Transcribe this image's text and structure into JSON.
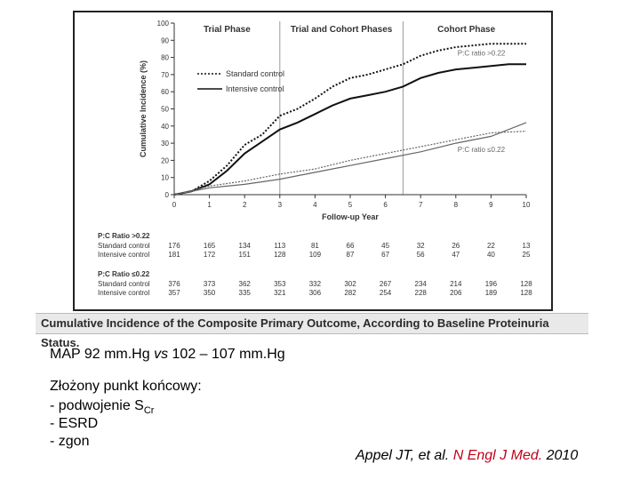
{
  "chart_data": {
    "type": "line",
    "phases": [
      "Trial Phase",
      "Trial and Cohort Phases",
      "Cohort Phase"
    ],
    "xlabel": "Follow-up Year",
    "ylabel": "Cumulative Incidence (%)",
    "x_ticks": [
      0,
      1,
      2,
      3,
      4,
      5,
      6,
      7,
      8,
      9,
      10
    ],
    "y_ticks": [
      0,
      10,
      20,
      30,
      40,
      50,
      60,
      70,
      80,
      90,
      100
    ],
    "xlim": [
      0,
      10
    ],
    "ylim": [
      0,
      100
    ],
    "legend": [
      "Standard control",
      "Intensive control"
    ],
    "curve_labels": {
      "high": "P:C ratio >0.22",
      "low": "P:C ratio ≤0.22"
    },
    "series": [
      {
        "name": "Standard control",
        "group": "P:C ratio >0.22",
        "style": "dotted",
        "x": [
          0,
          0.5,
          1,
          1.5,
          2,
          2.5,
          3,
          3.5,
          4,
          4.5,
          5,
          5.5,
          6,
          6.5,
          7,
          7.5,
          8,
          8.5,
          9,
          9.5,
          10
        ],
        "y": [
          0,
          2,
          8,
          17,
          29,
          35,
          46,
          50,
          56,
          63,
          68,
          70,
          73,
          76,
          81,
          84,
          86,
          87,
          88,
          88,
          88
        ]
      },
      {
        "name": "Intensive control",
        "group": "P:C ratio >0.22",
        "style": "solid",
        "x": [
          0,
          0.5,
          1,
          1.5,
          2,
          2.5,
          3,
          3.5,
          4,
          4.5,
          5,
          5.5,
          6,
          6.5,
          7,
          7.5,
          8,
          8.5,
          9,
          9.5,
          10
        ],
        "y": [
          0,
          2,
          6,
          14,
          24,
          31,
          38,
          42,
          47,
          52,
          56,
          58,
          60,
          63,
          68,
          71,
          73,
          74,
          75,
          76,
          76
        ]
      },
      {
        "name": "Standard control",
        "group": "P:C ratio ≤0.22",
        "style": "dotted",
        "x": [
          0,
          1,
          2,
          3,
          4,
          5,
          6,
          7,
          8,
          9,
          10
        ],
        "y": [
          0,
          5,
          8,
          12,
          15,
          20,
          24,
          28,
          32,
          36,
          37
        ]
      },
      {
        "name": "Intensive control",
        "group": "P:C ratio ≤0.22",
        "style": "solid",
        "x": [
          0,
          1,
          2,
          3,
          4,
          5,
          6,
          7,
          8,
          9,
          10
        ],
        "y": [
          0,
          4,
          6,
          9,
          13,
          17,
          21,
          25,
          30,
          34,
          42
        ]
      }
    ],
    "risk_table": {
      "groups": [
        {
          "header": "P:C Ratio >0.22",
          "rows": [
            {
              "label": "Standard control",
              "values": [
                "176",
                "165",
                "134",
                "113",
                "81",
                "66",
                "45",
                "32",
                "26",
                "22",
                "13"
              ]
            },
            {
              "label": "Intensive control",
              "values": [
                "181",
                "172",
                "151",
                "128",
                "109",
                "87",
                "67",
                "56",
                "47",
                "40",
                "25"
              ]
            }
          ]
        },
        {
          "header": "P:C Ratio ≤0.22",
          "rows": [
            {
              "label": "Standard control",
              "values": [
                "376",
                "373",
                "362",
                "353",
                "332",
                "302",
                "267",
                "234",
                "214",
                "196",
                "128"
              ]
            },
            {
              "label": "Intensive control",
              "values": [
                "357",
                "350",
                "335",
                "321",
                "306",
                "282",
                "254",
                "228",
                "206",
                "189",
                "128"
              ]
            }
          ]
        }
      ]
    }
  },
  "caption": "Cumulative Incidence of the Composite Primary Outcome, According to Baseline Proteinuria Status.",
  "text": {
    "map_prefix": "MAP 92 mm.Hg ",
    "map_vs": "vs",
    "map_suffix": " 102 – 107 mm.Hg",
    "endpoint_title": "Złożony punkt końcowy:",
    "item1_prefix": "- podwojenie S",
    "item1_sub": "Cr",
    "item2": "- ESRD",
    "item3": "- zgon"
  },
  "reference": {
    "authors": "Appel JT, et al. ",
    "journal": "N Engl J Med.",
    "year": " 2010"
  }
}
